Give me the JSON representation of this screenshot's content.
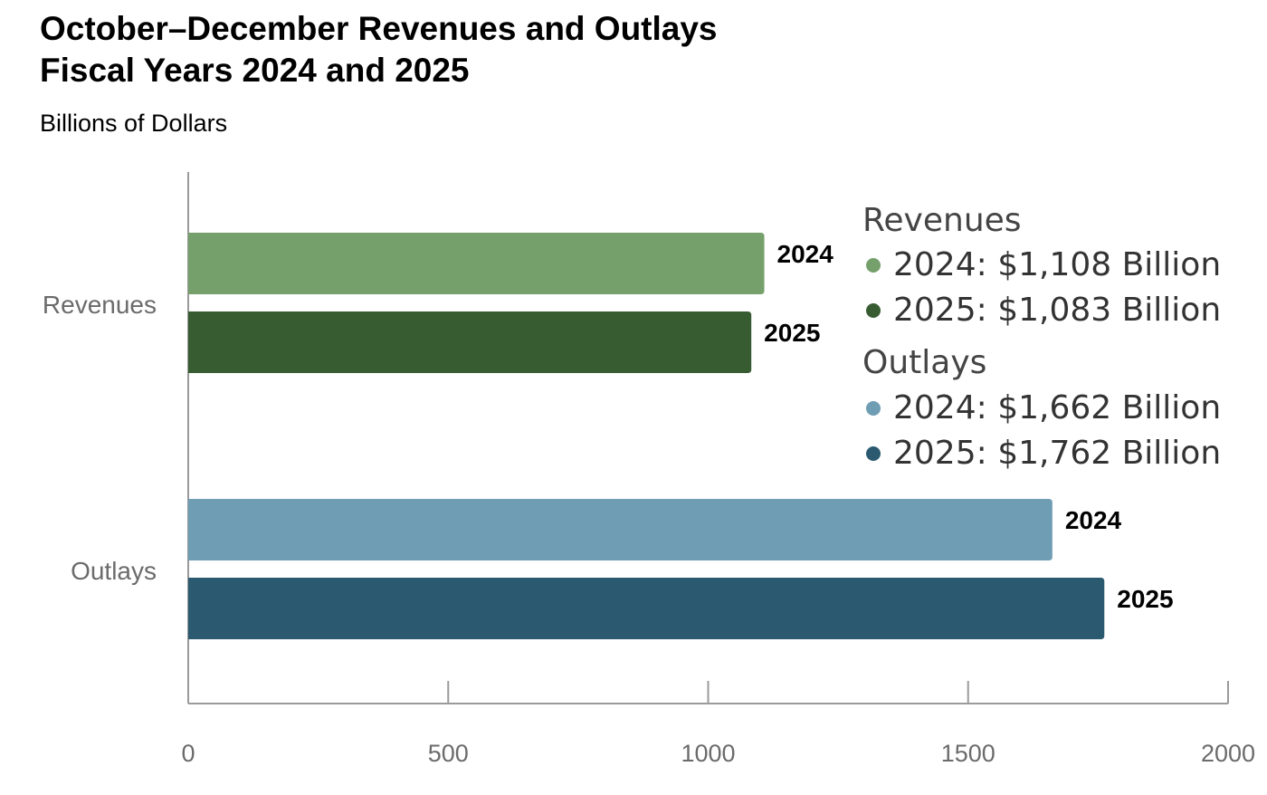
{
  "chart_data": {
    "type": "bar",
    "orientation": "horizontal",
    "title_lines": [
      "October–December Revenues and Outlays",
      "Fiscal Years 2024 and 2025"
    ],
    "subtitle": "Billions of Dollars",
    "xlim": [
      0,
      2000
    ],
    "xticks": [
      0,
      500,
      1000,
      1500,
      2000
    ],
    "grid": false,
    "legend_position": "top-right",
    "groups": [
      {
        "category": "Revenues",
        "bars": [
          {
            "label": "2024",
            "value": 1108,
            "color": "#75a06b"
          },
          {
            "label": "2025",
            "value": 1083,
            "color": "#375c32"
          }
        ]
      },
      {
        "category": "Outlays",
        "bars": [
          {
            "label": "2024",
            "value": 1662,
            "color": "#6e9db4"
          },
          {
            "label": "2025",
            "value": 1762,
            "color": "#2b5a70"
          }
        ]
      }
    ],
    "legend": [
      {
        "heading": "Revenues",
        "items": [
          {
            "text": "2024: $1,108 Billion",
            "color": "#75a06b"
          },
          {
            "text": "2025: $1,083 Billion",
            "color": "#375c32"
          }
        ]
      },
      {
        "heading": "Outlays",
        "items": [
          {
            "text": "2024: $1,662 Billion",
            "color": "#6e9db4"
          },
          {
            "text": "2025: $1,762 Billion",
            "color": "#2b5a70"
          }
        ]
      }
    ]
  }
}
